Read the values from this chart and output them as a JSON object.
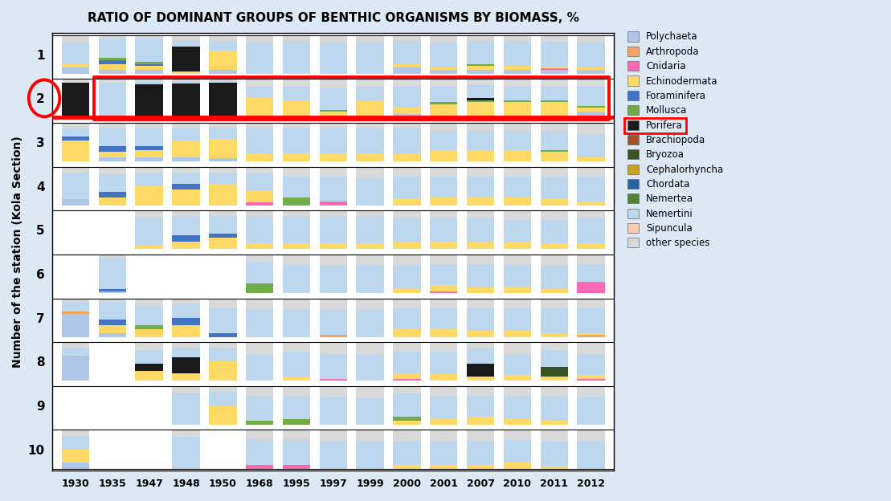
{
  "title": "RATIO OF DOMINANT GROUPS OF BENTHIC ORGANISMS BY BIOMASS, %",
  "ylabel": "Number of the station (Kola Section)",
  "years": [
    "1930",
    "1935",
    "1947",
    "1948",
    "1950",
    "1968",
    "1995",
    "1997",
    "1999",
    "2000",
    "2001",
    "2007",
    "2010",
    "2011",
    "2012"
  ],
  "stations": [
    1,
    2,
    3,
    4,
    5,
    6,
    7,
    8,
    9,
    10
  ],
  "categories": [
    "Polychaeta",
    "Arthropoda",
    "Cnidaria",
    "Echinodermata",
    "Foraminifera",
    "Mollusca",
    "Porifera",
    "Brachiopoda",
    "Bryozoa",
    "Cephalorhyncha",
    "Chordata",
    "Nemertea",
    "Nemertini",
    "Sipuncula",
    "other species"
  ],
  "colors": {
    "Polychaeta": "#aec6e8",
    "Arthropoda": "#f4a460",
    "Cnidaria": "#ff69b4",
    "Echinodermata": "#ffd966",
    "Foraminifera": "#4472c4",
    "Mollusca": "#70ad47",
    "Porifera": "#1a1a1a",
    "Brachiopoda": "#a0522d",
    "Bryozoa": "#375623",
    "Cephalorhyncha": "#c9a227",
    "Chordata": "#2e5fa3",
    "Nemertea": "#548235",
    "Nemertini": "#bdd7ee",
    "Sipuncula": "#f9cbac",
    "other species": "#d9d9d9"
  },
  "background": "#dce9f5",
  "data": {
    "1": {
      "1930": {
        "Nemertini": 55,
        "Polychaeta": 15,
        "Echinodermata": 10,
        "other species": 20
      },
      "1935": {
        "Foraminifera": 10,
        "Echinodermata": 15,
        "Polychaeta": 10,
        "Nemertini": 50,
        "Mollusca": 5,
        "other species": 10
      },
      "1947": {
        "Foraminifera": 5,
        "Echinodermata": 10,
        "Nemertini": 60,
        "Polychaeta": 10,
        "Mollusca": 5,
        "other species": 10
      },
      "1948": {
        "Porifera": 65,
        "Echinodermata": 5,
        "Nemertini": 15,
        "other species": 15
      },
      "1950": {
        "Echinodermata": 50,
        "Polychaeta": 10,
        "Nemertini": 25,
        "other species": 15
      },
      "1968": {
        "Nemertini": 80,
        "other species": 20
      },
      "1995": {
        "Nemertini": 85,
        "other species": 15
      },
      "1997": {
        "Nemertini": 80,
        "other species": 20
      },
      "1999": {
        "Nemertini": 80,
        "other species": 20
      },
      "2000": {
        "Nemertini": 60,
        "Polychaeta": 15,
        "Echinodermata": 10,
        "other species": 15
      },
      "2001": {
        "Nemertini": 65,
        "Polychaeta": 10,
        "Echinodermata": 5,
        "other species": 20
      },
      "2007": {
        "Nemertini": 60,
        "Polychaeta": 10,
        "Echinodermata": 10,
        "Mollusca": 5,
        "other species": 15
      },
      "2010": {
        "Nemertini": 65,
        "Polychaeta": 10,
        "Echinodermata": 10,
        "other species": 15
      },
      "2011": {
        "Nemertini": 65,
        "Polychaeta": 10,
        "Echinodermata": 5,
        "Cnidaria": 3,
        "other species": 17
      },
      "2012": {
        "Nemertini": 65,
        "Polychaeta": 10,
        "Echinodermata": 5,
        "other species": 20
      }
    },
    "2": {
      "1930": {
        "Porifera": 90,
        "other species": 10
      },
      "1935": {
        "Porifera": 5,
        "Nemertini": 85,
        "other species": 10
      },
      "1947": {
        "Porifera": 85,
        "Nemertini": 10,
        "other species": 5
      },
      "1948": {
        "Porifera": 88,
        "Nemertini": 7,
        "other species": 5
      },
      "1950": {
        "Porifera": 85,
        "Echinodermata": 5,
        "Nemertini": 5,
        "other species": 5
      },
      "1968": {
        "Echinodermata": 50,
        "Nemertini": 30,
        "other species": 20
      },
      "1995": {
        "Echinodermata": 45,
        "Nemertini": 35,
        "other species": 20
      },
      "1997": {
        "Echinodermata": 15,
        "Nemertini": 55,
        "Mollusca": 5,
        "other species": 25
      },
      "1999": {
        "Echinodermata": 45,
        "Nemertini": 35,
        "other species": 20
      },
      "2000": {
        "Echinodermata": 15,
        "Nemertini": 55,
        "Polychaeta": 10,
        "other species": 20
      },
      "2001": {
        "Echinodermata": 35,
        "Nemertini": 40,
        "Mollusca": 5,
        "other species": 20
      },
      "2007": {
        "Porifera": 5,
        "Echinodermata": 40,
        "Nemertini": 35,
        "Mollusca": 5,
        "other species": 15
      },
      "2010": {
        "Echinodermata": 40,
        "Nemertini": 35,
        "Mollusca": 5,
        "other species": 20
      },
      "2011": {
        "Echinodermata": 40,
        "Nemertini": 35,
        "Mollusca": 5,
        "other species": 20
      },
      "2012": {
        "Mollusca": 5,
        "Nemertini": 50,
        "Polychaeta": 15,
        "Echinodermata": 10,
        "other species": 20
      }
    },
    "3": {
      "1930": {
        "Echinodermata": 55,
        "Foraminifera": 10,
        "Nemertini": 20,
        "other species": 15
      },
      "1935": {
        "Foraminifera": 15,
        "Echinodermata": 15,
        "Nemertini": 45,
        "Polychaeta": 10,
        "other species": 15
      },
      "1947": {
        "Foraminifera": 10,
        "Echinodermata": 20,
        "Nemertini": 45,
        "Polychaeta": 10,
        "other species": 15
      },
      "1948": {
        "Echinodermata": 45,
        "Nemertini": 30,
        "Polychaeta": 10,
        "other species": 15
      },
      "1950": {
        "Echinodermata": 50,
        "Nemertini": 30,
        "Polychaeta": 8,
        "other species": 12
      },
      "1968": {
        "Nemertini": 65,
        "Echinodermata": 20,
        "other species": 15
      },
      "1995": {
        "Nemertini": 65,
        "Echinodermata": 20,
        "other species": 15
      },
      "1997": {
        "Nemertini": 65,
        "Echinodermata": 20,
        "other species": 15
      },
      "1999": {
        "Nemertini": 65,
        "Echinodermata": 20,
        "other species": 15
      },
      "2000": {
        "Nemertini": 65,
        "Echinodermata": 20,
        "other species": 15
      },
      "2001": {
        "Echinodermata": 30,
        "Nemertini": 50,
        "other species": 20
      },
      "2007": {
        "Echinodermata": 30,
        "Nemertini": 50,
        "other species": 20
      },
      "2010": {
        "Echinodermata": 30,
        "Nemertini": 50,
        "other species": 20
      },
      "2011": {
        "Echinodermata": 25,
        "Nemertini": 50,
        "Mollusca": 5,
        "other species": 20
      },
      "2012": {
        "Nemertini": 60,
        "Echinodermata": 10,
        "other species": 30
      }
    },
    "4": {
      "1930": {
        "Nemertini": 70,
        "Polychaeta": 15,
        "other species": 15
      },
      "1935": {
        "Foraminifera": 15,
        "Echinodermata": 20,
        "Nemertini": 45,
        "other species": 20
      },
      "1947": {
        "Echinodermata": 50,
        "Nemertini": 35,
        "other species": 15
      },
      "1948": {
        "Echinodermata": 40,
        "Foraminifera": 15,
        "Nemertini": 30,
        "other species": 15
      },
      "1950": {
        "Echinodermata": 55,
        "Nemertini": 30,
        "other species": 15
      },
      "1968": {
        "Cnidaria": 8,
        "Echinodermata": 30,
        "Nemertini": 45,
        "other species": 17
      },
      "1995": {
        "Mollusca": 20,
        "Nemertini": 55,
        "other species": 25
      },
      "1997": {
        "Cnidaria": 10,
        "Nemertini": 65,
        "other species": 25
      },
      "1999": {
        "Nemertini": 70,
        "other species": 30
      },
      "2000": {
        "Echinodermata": 15,
        "Nemertini": 60,
        "other species": 25
      },
      "2001": {
        "Echinodermata": 20,
        "Nemertini": 55,
        "other species": 25
      },
      "2007": {
        "Echinodermata": 20,
        "Nemertini": 55,
        "other species": 25
      },
      "2010": {
        "Echinodermata": 20,
        "Nemertini": 55,
        "other species": 25
      },
      "2011": {
        "Echinodermata": 15,
        "Nemertini": 60,
        "other species": 25
      },
      "2012": {
        "Echinodermata": 10,
        "Nemertini": 65,
        "other species": 25
      }
    },
    "5": {
      "1930": {},
      "1935": {},
      "1947": {
        "Echinodermata": 10,
        "Nemertini": 70,
        "other species": 20
      },
      "1948": {
        "Foraminifera": 15,
        "Echinodermata": 20,
        "Nemertini": 50,
        "other species": 15
      },
      "1950": {
        "Foraminifera": 10,
        "Echinodermata": 30,
        "Nemertini": 45,
        "other species": 15
      },
      "1968": {
        "Nemertini": 70,
        "Echinodermata": 15,
        "other species": 15
      },
      "1995": {
        "Nemertini": 70,
        "Echinodermata": 15,
        "other species": 15
      },
      "1997": {
        "Nemertini": 70,
        "Echinodermata": 15,
        "other species": 15
      },
      "1999": {
        "Nemertini": 70,
        "Echinodermata": 15,
        "other species": 15
      },
      "2000": {
        "Echinodermata": 20,
        "Nemertini": 60,
        "other species": 20
      },
      "2001": {
        "Echinodermata": 20,
        "Nemertini": 60,
        "other species": 20
      },
      "2007": {
        "Echinodermata": 20,
        "Nemertini": 60,
        "other species": 20
      },
      "2010": {
        "Echinodermata": 20,
        "Nemertini": 55,
        "other species": 25
      },
      "2011": {
        "Echinodermata": 15,
        "Nemertini": 60,
        "other species": 25
      },
      "2012": {
        "Nemertini": 65,
        "Echinodermata": 15,
        "other species": 20
      }
    },
    "6": {
      "1930": {},
      "1935": {
        "Foraminifera": 5,
        "Polychaeta": 5,
        "Nemertini": 80,
        "other species": 10
      },
      "1947": {},
      "1948": {},
      "1950": {},
      "1968": {
        "Mollusca": 25,
        "Nemertini": 55,
        "other species": 20
      },
      "1995": {
        "Nemertini": 72,
        "other species": 28
      },
      "1997": {
        "Nemertini": 70,
        "other species": 30
      },
      "1999": {
        "Nemertini": 72,
        "other species": 28
      },
      "2000": {
        "Echinodermata": 10,
        "Nemertini": 62,
        "other species": 28
      },
      "2001": {
        "Cnidaria": 5,
        "Echinodermata": 15,
        "Nemertini": 55,
        "other species": 25
      },
      "2007": {
        "Echinodermata": 15,
        "Nemertini": 60,
        "other species": 25
      },
      "2010": {
        "Echinodermata": 15,
        "Nemertini": 58,
        "other species": 27
      },
      "2011": {
        "Echinodermata": 10,
        "Nemertini": 60,
        "other species": 30
      },
      "2012": {
        "Cnidaria": 30,
        "Nemertini": 45,
        "other species": 25
      }
    },
    "7": {
      "1930": {
        "Arthropoda": 5,
        "Polychaeta": 60,
        "Nemertini": 25,
        "other species": 10
      },
      "1935": {
        "Foraminifera": 15,
        "Echinodermata": 20,
        "Nemertini": 45,
        "Polychaeta": 10,
        "other species": 10
      },
      "1947": {
        "Echinodermata": 20,
        "Nemertini": 50,
        "Mollusca": 10,
        "other species": 20
      },
      "1948": {
        "Foraminifera": 20,
        "Echinodermata": 30,
        "Nemertini": 35,
        "other species": 15
      },
      "1950": {
        "Foraminifera": 10,
        "Nemertini": 65,
        "other species": 25
      },
      "1968": {
        "Nemertini": 72,
        "other species": 28
      },
      "1995": {
        "Nemertini": 72,
        "other species": 28
      },
      "1997": {
        "Arthropoda": 5,
        "Nemertini": 67,
        "other species": 28
      },
      "1999": {
        "Nemertini": 72,
        "other species": 28
      },
      "2000": {
        "Echinodermata": 20,
        "Nemertini": 55,
        "other species": 25
      },
      "2001": {
        "Echinodermata": 20,
        "Nemertini": 55,
        "other species": 25
      },
      "2007": {
        "Echinodermata": 15,
        "Nemertini": 60,
        "other species": 25
      },
      "2010": {
        "Echinodermata": 15,
        "Nemertini": 60,
        "other species": 25
      },
      "2011": {
        "Echinodermata": 10,
        "Nemertini": 65,
        "other species": 25
      },
      "2012": {
        "Echinodermata": 5,
        "Nemertini": 65,
        "Arthropoda": 5,
        "other species": 25
      }
    },
    "8": {
      "1930": {
        "Polychaeta": 65,
        "Nemertini": 20,
        "other species": 15
      },
      "1935": {},
      "1947": {
        "Porifera": 20,
        "Echinodermata": 25,
        "Nemertini": 35,
        "other species": 20
      },
      "1948": {
        "Porifera": 40,
        "Echinodermata": 20,
        "Nemertini": 25,
        "other species": 15
      },
      "1950": {
        "Echinodermata": 50,
        "Nemertini": 35,
        "other species": 15
      },
      "1968": {
        "Nemertini": 68,
        "other species": 32
      },
      "1995": {
        "Nemertini": 65,
        "Echinodermata": 10,
        "other species": 25
      },
      "1997": {
        "Cnidaria": 5,
        "Nemertini": 65,
        "other species": 30
      },
      "1999": {
        "Nemertini": 68,
        "other species": 32
      },
      "2000": {
        "Cnidaria": 5,
        "Echinodermata": 15,
        "Nemertini": 55,
        "other species": 25
      },
      "2001": {
        "Echinodermata": 20,
        "Nemertini": 55,
        "other species": 25
      },
      "2007": {
        "Porifera": 35,
        "Echinodermata": 10,
        "Nemertini": 40,
        "other species": 15
      },
      "2010": {
        "Echinodermata": 15,
        "Nemertini": 55,
        "other species": 30
      },
      "2011": {
        "Bryozoa": 25,
        "Echinodermata": 10,
        "Nemertini": 45,
        "other species": 20
      },
      "2012": {
        "Echinodermata": 10,
        "Nemertini": 55,
        "Cnidaria": 5,
        "other species": 30
      }
    },
    "9": {
      "1930": {},
      "1935": {},
      "1947": {},
      "1948": {
        "Nemertini": 82,
        "other species": 18
      },
      "1950": {
        "Echinodermata": 50,
        "Nemertini": 35,
        "other species": 15
      },
      "1968": {
        "Mollusca": 10,
        "Nemertini": 65,
        "other species": 25
      },
      "1995": {
        "Mollusca": 15,
        "Nemertini": 60,
        "other species": 25
      },
      "1997": {
        "Nemertini": 72,
        "other species": 28
      },
      "1999": {
        "Nemertini": 68,
        "other species": 32
      },
      "2000": {
        "Mollusca": 10,
        "Nemertini": 60,
        "Echinodermata": 10,
        "other species": 20
      },
      "2001": {
        "Echinodermata": 15,
        "Nemertini": 60,
        "other species": 25
      },
      "2007": {
        "Echinodermata": 20,
        "Nemertini": 55,
        "other species": 25
      },
      "2010": {
        "Echinodermata": 15,
        "Nemertini": 60,
        "other species": 25
      },
      "2011": {
        "Echinodermata": 10,
        "Nemertini": 65,
        "other species": 25
      },
      "2012": {
        "Nemertini": 72,
        "other species": 28
      }
    },
    "10": {
      "1930": {
        "Echinodermata": 35,
        "Nemertini": 35,
        "Polychaeta": 15,
        "other species": 15
      },
      "1935": {},
      "1947": {},
      "1948": {
        "Nemertini": 82,
        "other species": 18
      },
      "1950": {},
      "1968": {
        "Cnidaria": 10,
        "Nemertini": 65,
        "other species": 25
      },
      "1995": {
        "Cnidaria": 10,
        "Nemertini": 65,
        "other species": 25
      },
      "1997": {
        "Nemertini": 72,
        "other species": 28
      },
      "1999": {
        "Nemertini": 72,
        "other species": 28
      },
      "2000": {
        "Echinodermata": 10,
        "Nemertini": 62,
        "other species": 28
      },
      "2001": {
        "Echinodermata": 10,
        "Nemertini": 62,
        "other species": 28
      },
      "2007": {
        "Echinodermata": 10,
        "Nemertini": 62,
        "other species": 28
      },
      "2010": {
        "Echinodermata": 15,
        "Nemertini": 58,
        "other species": 27
      },
      "2011": {
        "Echinodermata": 5,
        "Nemertini": 65,
        "other species": 30
      },
      "2012": {
        "Nemertini": 72,
        "other species": 28
      }
    }
  }
}
